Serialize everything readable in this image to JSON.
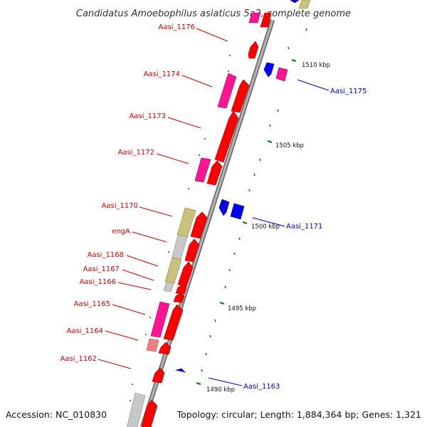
{
  "title": "Candidatus Amoebophilus asiaticus 5a2, complete genome",
  "footer": {
    "accession": "Accession: NC_010830",
    "summary": "Topology: circular; Length: 1,884,364 bp; Genes: 1,321"
  },
  "colors": {
    "backbone": "#8c8c8c",
    "reverse_label": "#cc0000",
    "forward_label": "#0000cc",
    "tick": "#117711",
    "red": "#ff0000",
    "pink": "#ff1493",
    "salmon": "#f08080",
    "khaki": "#c8c27a",
    "grey": "#c8c8c8",
    "lightpink": "#ffb6c1",
    "blue": "#0000ee"
  },
  "ticks": [
    {
      "label": "1510 kbp"
    },
    {
      "label": "1505 kbp"
    },
    {
      "label": "1500 kbp"
    },
    {
      "label": "1495 kbp"
    },
    {
      "label": "1490 kbp"
    }
  ],
  "gene_labels": [
    {
      "text": "Aasi_1176",
      "strand": "reverse"
    },
    {
      "text": "Aasi_1174",
      "strand": "reverse"
    },
    {
      "text": "Aasi_1173",
      "strand": "reverse"
    },
    {
      "text": "Aasi_1172",
      "strand": "reverse"
    },
    {
      "text": "Aasi_1170",
      "strand": "reverse"
    },
    {
      "text": "engA",
      "strand": "reverse"
    },
    {
      "text": "Aasi_1168",
      "strand": "reverse"
    },
    {
      "text": "Aasi_1167",
      "strand": "reverse"
    },
    {
      "text": "Aasi_1166",
      "strand": "reverse"
    },
    {
      "text": "Aasi_1165",
      "strand": "reverse"
    },
    {
      "text": "Aasi_1164",
      "strand": "reverse"
    },
    {
      "text": "Aasi_1162",
      "strand": "reverse"
    },
    {
      "text": "Aasi_1175",
      "strand": "forward"
    },
    {
      "text": "Aasi_1171",
      "strand": "forward"
    },
    {
      "text": "Aasi_1163",
      "strand": "forward"
    }
  ]
}
